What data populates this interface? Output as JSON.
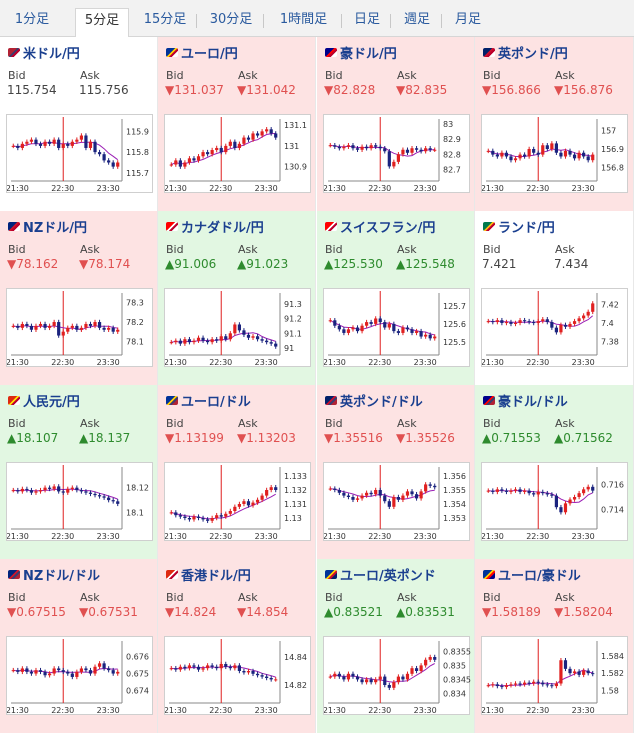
{
  "tabs": [
    {
      "label": "1分足",
      "active": false
    },
    {
      "label": "5分足",
      "active": true
    },
    {
      "label": "15分足",
      "active": false
    },
    {
      "label": "30分足",
      "active": false
    },
    {
      "label": "1時間足",
      "active": false
    },
    {
      "label": "日足",
      "active": false
    },
    {
      "label": "週足",
      "active": false
    },
    {
      "label": "月足",
      "active": false
    }
  ],
  "labels": {
    "bid": "Bid",
    "ask": "Ask"
  },
  "colors": {
    "up": "#e2f7e2",
    "down": "#fde3e3",
    "bull_candle": "#e02020",
    "bear_candle": "#1a237e",
    "ma_line": "#9b1fb5",
    "divider": "#e02020"
  },
  "pairs": [
    {
      "name": "米ドル/円",
      "flag": "us-jp-flag",
      "trend": "flat",
      "bid": "115.754",
      "ask": "115.756"
    },
    {
      "name": "ユーロ/円",
      "flag": "eu-jp-flag",
      "trend": "down",
      "bid": "▼131.037",
      "ask": "▼131.042"
    },
    {
      "name": "豪ドル/円",
      "flag": "au-jp-flag",
      "trend": "down",
      "bid": "▼82.828",
      "ask": "▼82.835"
    },
    {
      "name": "英ポンド/円",
      "flag": "gb-jp-flag",
      "trend": "down",
      "bid": "▼156.866",
      "ask": "▼156.876"
    },
    {
      "name": "NZドル/円",
      "flag": "nz-jp-flag",
      "trend": "down",
      "bid": "▼78.162",
      "ask": "▼78.174"
    },
    {
      "name": "カナダドル/円",
      "flag": "ca-jp-flag",
      "trend": "up",
      "bid": "▲91.006",
      "ask": "▲91.023"
    },
    {
      "name": "スイスフラン/円",
      "flag": "ch-jp-flag",
      "trend": "up",
      "bid": "▲125.530",
      "ask": "▲125.548"
    },
    {
      "name": "ランド/円",
      "flag": "za-jp-flag",
      "trend": "flat",
      "bid": "7.421",
      "ask": "7.434"
    },
    {
      "name": "人民元/円",
      "flag": "cn-jp-flag",
      "trend": "up",
      "bid": "▲18.107",
      "ask": "▲18.137"
    },
    {
      "name": "ユーロ/ドル",
      "flag": "eu-us-flag",
      "trend": "down",
      "bid": "▼1.13199",
      "ask": "▼1.13203"
    },
    {
      "name": "英ポンド/ドル",
      "flag": "gb-us-flag",
      "trend": "down",
      "bid": "▼1.35516",
      "ask": "▼1.35526"
    },
    {
      "name": "豪ドル/ドル",
      "flag": "au-us-flag",
      "trend": "up",
      "bid": "▲0.71553",
      "ask": "▲0.71562"
    },
    {
      "name": "NZドル/ドル",
      "flag": "nz-us-flag",
      "trend": "down",
      "bid": "▼0.67515",
      "ask": "▼0.67531"
    },
    {
      "name": "香港ドル/円",
      "flag": "hk-jp-flag",
      "trend": "down",
      "bid": "▼14.824",
      "ask": "▼14.854"
    },
    {
      "name": "ユーロ/英ポンド",
      "flag": "eu-gb-flag",
      "trend": "up",
      "bid": "▲0.83521",
      "ask": "▲0.83531"
    },
    {
      "name": "ユーロ/豪ドル",
      "flag": "eu-au-flag",
      "trend": "down",
      "bid": "▼1.58189",
      "ask": "▼1.58204"
    }
  ],
  "chart_data": [
    {
      "type": "candlestick",
      "xticks": [
        "21:30",
        "22:30",
        "23:30"
      ],
      "yticks": [
        "115.9",
        "115.8",
        "115.7"
      ],
      "ylim": [
        115.68,
        115.95
      ],
      "close": [
        115.83,
        115.82,
        115.84,
        115.85,
        115.86,
        115.84,
        115.83,
        115.85,
        115.84,
        115.86,
        115.82,
        115.84,
        115.83,
        115.85,
        115.86,
        115.88,
        115.82,
        115.85,
        115.8,
        115.79,
        115.76,
        115.75,
        115.73,
        115.75
      ]
    },
    {
      "type": "candlestick",
      "xticks": [
        "21:30",
        "22:30",
        "23:30"
      ],
      "yticks": [
        "131.1",
        "131",
        "130.9"
      ],
      "ylim": [
        130.85,
        131.12
      ],
      "close": [
        130.91,
        130.93,
        130.9,
        130.92,
        130.94,
        130.93,
        130.95,
        130.97,
        130.96,
        130.98,
        130.99,
        130.97,
        131.0,
        131.02,
        130.99,
        131.01,
        131.04,
        131.03,
        131.06,
        131.05,
        131.07,
        131.08,
        131.06,
        131.04
      ]
    },
    {
      "type": "candlestick",
      "xticks": [
        "21:30",
        "22:30",
        "23:30"
      ],
      "yticks": [
        "83",
        "82.9",
        "82.8",
        "82.7"
      ],
      "ylim": [
        82.65,
        83.02
      ],
      "close": [
        82.86,
        82.85,
        82.84,
        82.85,
        82.86,
        82.84,
        82.83,
        82.85,
        82.84,
        82.86,
        82.85,
        82.84,
        82.82,
        82.72,
        82.75,
        82.8,
        82.83,
        82.81,
        82.84,
        82.83,
        82.82,
        82.84,
        82.83,
        82.83
      ]
    },
    {
      "type": "candlestick",
      "xticks": [
        "21:30",
        "22:30",
        "23:30"
      ],
      "yticks": [
        "157",
        "156.9",
        "156.8"
      ],
      "ylim": [
        156.75,
        157.05
      ],
      "close": [
        156.89,
        156.87,
        156.86,
        156.88,
        156.86,
        156.84,
        156.85,
        156.87,
        156.86,
        156.9,
        156.88,
        156.87,
        156.92,
        156.9,
        156.93,
        156.88,
        156.86,
        156.89,
        156.87,
        156.85,
        156.88,
        156.86,
        156.84,
        156.87
      ]
    },
    {
      "type": "candlestick",
      "xticks": [
        "21:30",
        "22:30",
        "23:30"
      ],
      "yticks": [
        "78.3",
        "78.2",
        "78.1"
      ],
      "ylim": [
        78.05,
        78.34
      ],
      "close": [
        78.18,
        78.17,
        78.19,
        78.18,
        78.16,
        78.18,
        78.19,
        78.17,
        78.18,
        78.2,
        78.13,
        78.15,
        78.17,
        78.18,
        78.16,
        78.17,
        78.19,
        78.18,
        78.2,
        78.17,
        78.16,
        78.17,
        78.15,
        78.16
      ]
    },
    {
      "type": "candlestick",
      "xticks": [
        "21:30",
        "22:30",
        "23:30"
      ],
      "yticks": [
        "91.3",
        "91.2",
        "91.1",
        "91"
      ],
      "ylim": [
        90.98,
        91.36
      ],
      "close": [
        91.04,
        91.05,
        91.03,
        91.06,
        91.04,
        91.05,
        91.07,
        91.05,
        91.04,
        91.06,
        91.05,
        91.08,
        91.06,
        91.1,
        91.16,
        91.12,
        91.09,
        91.07,
        91.08,
        91.06,
        91.05,
        91.04,
        91.03,
        91.01
      ]
    },
    {
      "type": "candlestick",
      "xticks": [
        "21:30",
        "22:30",
        "23:30"
      ],
      "yticks": [
        "125.7",
        "125.6",
        "125.5"
      ],
      "ylim": [
        125.45,
        125.76
      ],
      "close": [
        125.62,
        125.59,
        125.57,
        125.55,
        125.57,
        125.58,
        125.56,
        125.59,
        125.61,
        125.6,
        125.63,
        125.61,
        125.58,
        125.6,
        125.56,
        125.55,
        125.58,
        125.57,
        125.55,
        125.56,
        125.53,
        125.54,
        125.52,
        125.53
      ]
    },
    {
      "type": "candlestick",
      "xticks": [
        "21:30",
        "22:30",
        "23:30"
      ],
      "yticks": [
        "7.42",
        "7.4",
        "7.38"
      ],
      "ylim": [
        7.37,
        7.43
      ],
      "close": [
        7.402,
        7.401,
        7.403,
        7.4,
        7.401,
        7.399,
        7.4,
        7.403,
        7.402,
        7.401,
        7.4,
        7.402,
        7.404,
        7.401,
        7.395,
        7.39,
        7.398,
        7.396,
        7.399,
        7.402,
        7.405,
        7.408,
        7.412,
        7.421
      ]
    },
    {
      "type": "candlestick",
      "xticks": [
        "21:30",
        "22:30",
        "23:30"
      ],
      "yticks": [
        "18.12",
        "18.1"
      ],
      "ylim": [
        18.09,
        18.135
      ],
      "close": [
        18.118,
        18.117,
        18.119,
        18.118,
        18.116,
        18.117,
        18.118,
        18.12,
        18.119,
        18.121,
        18.117,
        18.116,
        18.119,
        18.12,
        18.118,
        18.117,
        18.116,
        18.115,
        18.114,
        18.113,
        18.112,
        18.11,
        18.109,
        18.107
      ]
    },
    {
      "type": "candlestick",
      "xticks": [
        "21:30",
        "22:30",
        "23:30"
      ],
      "yticks": [
        "1.133",
        "1.132",
        "1.131",
        "1.13"
      ],
      "ylim": [
        1.1295,
        1.1335
      ],
      "close": [
        1.1304,
        1.1302,
        1.1301,
        1.13,
        1.1299,
        1.1301,
        1.13,
        1.1299,
        1.1298,
        1.13,
        1.1302,
        1.1301,
        1.1303,
        1.1305,
        1.1308,
        1.131,
        1.1312,
        1.1309,
        1.1311,
        1.1313,
        1.1316,
        1.132,
        1.1322,
        1.132
      ]
    },
    {
      "type": "candlestick",
      "xticks": [
        "21:30",
        "22:30",
        "23:30"
      ],
      "yticks": [
        "1.356",
        "1.355",
        "1.354",
        "1.353"
      ],
      "ylim": [
        1.3525,
        1.3565
      ],
      "close": [
        1.3551,
        1.355,
        1.3548,
        1.3546,
        1.3545,
        1.3543,
        1.3544,
        1.3546,
        1.3548,
        1.3547,
        1.355,
        1.3546,
        1.3542,
        1.3538,
        1.3545,
        1.3543,
        1.3546,
        1.3549,
        1.3547,
        1.3544,
        1.3549,
        1.3554,
        1.3553,
        1.3552
      ]
    },
    {
      "type": "candlestick",
      "xticks": [
        "21:30",
        "22:30",
        "23:30"
      ],
      "yticks": [
        "0.716",
        "0.714"
      ],
      "ylim": [
        0.7128,
        0.7172
      ],
      "close": [
        0.7155,
        0.7154,
        0.7156,
        0.7155,
        0.7154,
        0.7155,
        0.7156,
        0.7154,
        0.7155,
        0.7153,
        0.7152,
        0.7154,
        0.7153,
        0.7152,
        0.7151,
        0.7142,
        0.7138,
        0.7145,
        0.7148,
        0.715,
        0.7153,
        0.7156,
        0.7158,
        0.7155
      ]
    },
    {
      "type": "candlestick",
      "xticks": [
        "21:30",
        "22:30",
        "23:30"
      ],
      "yticks": [
        "0.676",
        "0.675",
        "0.674"
      ],
      "ylim": [
        0.6735,
        0.6768
      ],
      "close": [
        0.6752,
        0.6751,
        0.6753,
        0.6751,
        0.675,
        0.6752,
        0.6751,
        0.6749,
        0.675,
        0.6753,
        0.6752,
        0.6751,
        0.675,
        0.6748,
        0.6751,
        0.6753,
        0.6752,
        0.675,
        0.6754,
        0.6756,
        0.6753,
        0.6752,
        0.675,
        0.6751
      ]
    },
    {
      "type": "candlestick",
      "xticks": [
        "21:30",
        "22:30",
        "23:30"
      ],
      "yticks": [
        "14.84",
        "14.82"
      ],
      "ylim": [
        14.81,
        14.85
      ],
      "close": [
        14.832,
        14.831,
        14.833,
        14.832,
        14.834,
        14.833,
        14.831,
        14.832,
        14.834,
        14.833,
        14.832,
        14.835,
        14.833,
        14.832,
        14.834,
        14.83,
        14.829,
        14.83,
        14.828,
        14.827,
        14.826,
        14.825,
        14.824,
        14.824
      ]
    },
    {
      "type": "candlestick",
      "xticks": [
        "21:30",
        "22:30",
        "23:30"
      ],
      "yticks": [
        "0.8355",
        "0.835",
        "0.8345",
        "0.834"
      ],
      "ylim": [
        0.8338,
        0.8358
      ],
      "close": [
        0.8346,
        0.8347,
        0.8346,
        0.8345,
        0.8347,
        0.8346,
        0.8345,
        0.8344,
        0.8345,
        0.8344,
        0.8345,
        0.8346,
        0.8343,
        0.8342,
        0.8344,
        0.8346,
        0.8345,
        0.8347,
        0.8349,
        0.8348,
        0.835,
        0.8352,
        0.8353,
        0.8352
      ]
    },
    {
      "type": "candlestick",
      "xticks": [
        "21:30",
        "22:30",
        "23:30"
      ],
      "yticks": [
        "1.584",
        "1.582",
        "1.58"
      ],
      "ylim": [
        1.579,
        1.5855
      ],
      "close": [
        1.5806,
        1.5807,
        1.5805,
        1.5804,
        1.5806,
        1.5807,
        1.5808,
        1.5807,
        1.5809,
        1.5808,
        1.581,
        1.5809,
        1.5807,
        1.5806,
        1.5805,
        1.5808,
        1.5835,
        1.5825,
        1.582,
        1.5822,
        1.5818,
        1.5823,
        1.582,
        1.5819
      ]
    }
  ]
}
